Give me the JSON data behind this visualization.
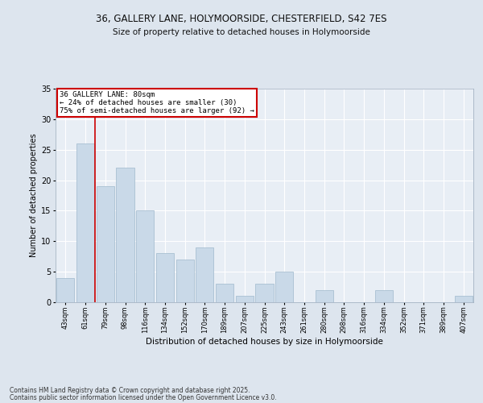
{
  "title1": "36, GALLERY LANE, HOLYMOORSIDE, CHESTERFIELD, S42 7ES",
  "title2": "Size of property relative to detached houses in Holymoorside",
  "xlabel": "Distribution of detached houses by size in Holymoorside",
  "ylabel": "Number of detached properties",
  "categories": [
    "43sqm",
    "61sqm",
    "79sqm",
    "98sqm",
    "116sqm",
    "134sqm",
    "152sqm",
    "170sqm",
    "189sqm",
    "207sqm",
    "225sqm",
    "243sqm",
    "261sqm",
    "280sqm",
    "298sqm",
    "316sqm",
    "334sqm",
    "352sqm",
    "371sqm",
    "389sqm",
    "407sqm"
  ],
  "values": [
    4,
    26,
    19,
    22,
    15,
    8,
    7,
    9,
    3,
    1,
    3,
    5,
    0,
    2,
    0,
    0,
    2,
    0,
    0,
    0,
    1
  ],
  "bar_color": "#c9d9e8",
  "bar_edge_color": "#9fb8cc",
  "vline_color": "#cc0000",
  "annotation_title": "36 GALLERY LANE: 80sqm",
  "annotation_line1": "← 24% of detached houses are smaller (30)",
  "annotation_line2": "75% of semi-detached houses are larger (92) →",
  "annotation_box_color": "#cc0000",
  "ylim": [
    0,
    35
  ],
  "yticks": [
    0,
    5,
    10,
    15,
    20,
    25,
    30,
    35
  ],
  "footer1": "Contains HM Land Registry data © Crown copyright and database right 2025.",
  "footer2": "Contains public sector information licensed under the Open Government Licence v3.0.",
  "bg_color": "#dde5ee",
  "plot_bg_color": "#e8eef5"
}
